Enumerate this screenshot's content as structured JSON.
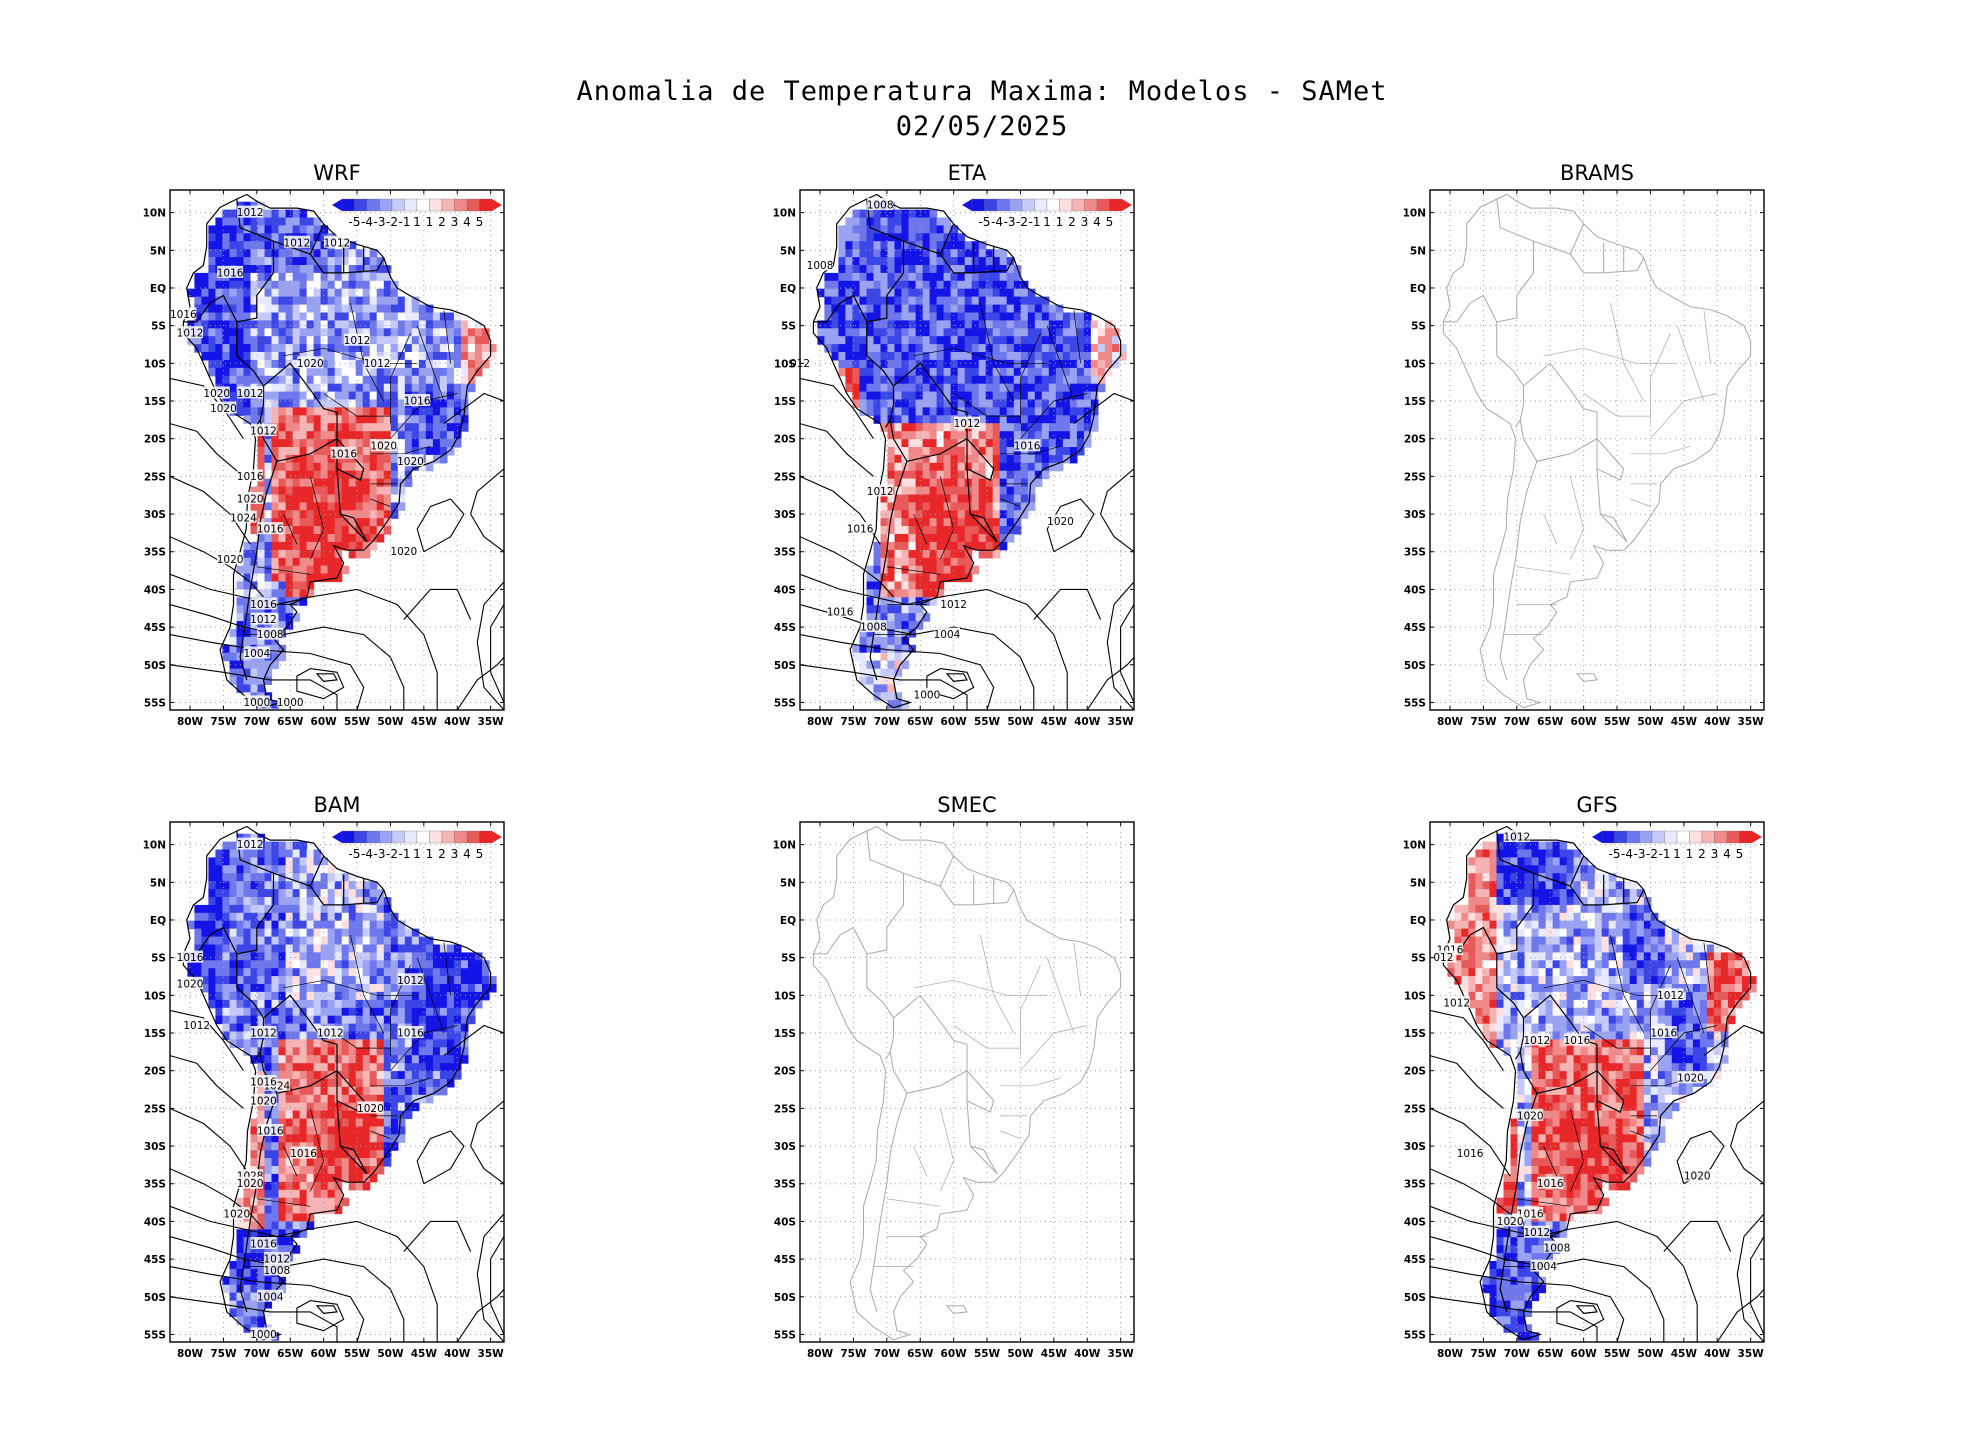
{
  "header": {
    "title": "Anomalia de Temperatura Maxima: Modelos - SAMet",
    "date": "02/05/2025"
  },
  "axes": {
    "lat_labels": [
      "10N",
      "5N",
      "EQ",
      "5S",
      "10S",
      "15S",
      "20S",
      "25S",
      "30S",
      "35S",
      "40S",
      "45S",
      "50S",
      "55S"
    ],
    "lon_labels": [
      "80W",
      "75W",
      "70W",
      "65W",
      "60W",
      "55W",
      "50W",
      "45W",
      "40W",
      "35W"
    ]
  },
  "colorbar": {
    "labels": [
      "-5",
      "-4",
      "-3",
      "-2",
      "-1",
      "1",
      "1",
      "2",
      "3",
      "4",
      "5"
    ],
    "colors": [
      "#1414e6",
      "#3c46e6",
      "#6e78ec",
      "#9aa2f2",
      "#c6caf8",
      "#e8ebff",
      "#ffffff",
      "#ffe0e0",
      "#f7b4b4",
      "#f08a8a",
      "#e85a5a",
      "#e82828"
    ]
  },
  "colors": {
    "positive": "#e81e1e",
    "negative": "#1e28e0",
    "coast_empty": "#a8a8a8",
    "grid": "#a0a0a0"
  },
  "panels": [
    {
      "title": "WRF",
      "has_data": true,
      "isobars": [
        "1012",
        "1012",
        "1012",
        "1016",
        "1016",
        "1012",
        "1012",
        "1020",
        "1012",
        "1020",
        "1020",
        "1012",
        "1016",
        "1012",
        "1016",
        "1020",
        "1020",
        "1016",
        "1020",
        "1024",
        "1016",
        "1020",
        "1020",
        "1016",
        "1012",
        "1008",
        "1004",
        "1000",
        "1000"
      ]
    },
    {
      "title": "ETA",
      "has_data": true,
      "isobars": [
        "1008",
        "1008",
        "012",
        "1012",
        "1016",
        "1012",
        "1016",
        "1020",
        "1012",
        "1016",
        "1008",
        "1004",
        "1000"
      ]
    },
    {
      "title": "BRAMS",
      "has_data": false,
      "isobars": []
    },
    {
      "title": "BAM",
      "has_data": true,
      "isobars": [
        "1012",
        "1016",
        "1020",
        "1012",
        "1012",
        "1012",
        "1012",
        "1016",
        "1024",
        "1016",
        "1020",
        "1020",
        "1016",
        "1016",
        "1028",
        "1020",
        "1020",
        "1016",
        "1012",
        "1008",
        "1004",
        "1000"
      ]
    },
    {
      "title": "SMEC",
      "has_data": false,
      "isobars": []
    },
    {
      "title": "GFS",
      "has_data": true,
      "isobars": [
        "1012",
        "1016",
        "012",
        "1012",
        "1012",
        "1016",
        "1012",
        "1016",
        "1020",
        "1020",
        "1016",
        "1016",
        "1016",
        "1020",
        "1020",
        "1012",
        "1008",
        "1004"
      ]
    }
  ]
}
